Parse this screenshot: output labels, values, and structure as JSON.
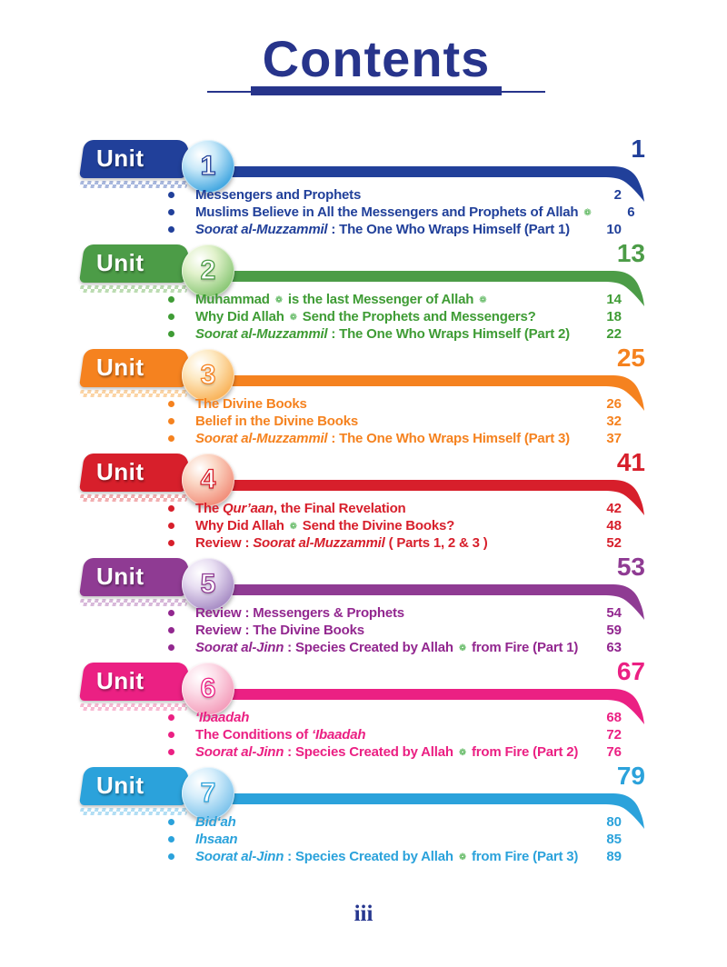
{
  "meta": {
    "honorific_display": "❁",
    "honorific_color": "#3DA93F",
    "title_color": "#27348B"
  },
  "title": "Contents",
  "footer_page": "iii",
  "labels": {
    "unit": "Unit"
  },
  "units": [
    {
      "number": "1",
      "page": "1",
      "colors": {
        "main": "#21409A",
        "text": "#21409A",
        "pale": "#A9B8DE",
        "circle": "#45A8E1",
        "circle-light": "#C9E9F9",
        "circle-dark": "#2380BD"
      },
      "items": [
        {
          "page": "2",
          "segments": [
            {
              "t": "Messengers and Prophets"
            }
          ]
        },
        {
          "page": "6",
          "segments": [
            {
              "t": "Muslims Believe in All the Messengers and Prophets of Allah "
            },
            {
              "t": "ﷻ",
              "h": true
            }
          ]
        },
        {
          "page": "10",
          "segments": [
            {
              "t": "Soorat al-Muzzammil",
              "i": true
            },
            {
              "t": " : The One Who Wraps Himself (Part 1)"
            }
          ]
        }
      ]
    },
    {
      "number": "2",
      "page": "13",
      "colors": {
        "main": "#4C9C47",
        "text": "#3F9C35",
        "pale": "#BCDCB2",
        "circle": "#8CC878",
        "circle-light": "#E2F2CC",
        "circle-dark": "#5BA748"
      },
      "items": [
        {
          "page": "14",
          "segments": [
            {
              "t": "Muhammad "
            },
            {
              "t": "ﷺ",
              "h": true
            },
            {
              "t": " is the last Messenger of Allah "
            },
            {
              "t": "ﷻ",
              "h": true
            }
          ]
        },
        {
          "page": "18",
          "segments": [
            {
              "t": "Why Did Allah "
            },
            {
              "t": "ﷻ",
              "h": true
            },
            {
              "t": " Send the Prophets and Messengers?"
            }
          ]
        },
        {
          "page": "22",
          "segments": [
            {
              "t": "Soorat al-Muzzammil",
              "i": true
            },
            {
              "t": " : The One Who Wraps Himself (Part 2)"
            }
          ]
        }
      ]
    },
    {
      "number": "3",
      "page": "25",
      "colors": {
        "main": "#F5821F",
        "text": "#F5821F",
        "pale": "#FBD4A5",
        "circle": "#F9B45C",
        "circle-light": "#FDEAC4",
        "circle-dark": "#F59B31"
      },
      "items": [
        {
          "page": "26",
          "segments": [
            {
              "t": "The Divine Books"
            }
          ]
        },
        {
          "page": "32",
          "segments": [
            {
              "t": "Belief in the Divine Books"
            }
          ]
        },
        {
          "page": "37",
          "segments": [
            {
              "t": "Soorat al-Muzzammil",
              "i": true
            },
            {
              "t": " : The One Who Wraps Himself (Part 3)"
            }
          ]
        }
      ]
    },
    {
      "number": "4",
      "page": "41",
      "colors": {
        "main": "#D71F2B",
        "text": "#D71F2B",
        "pale": "#F2AEB0",
        "circle": "#F2907C",
        "circle-light": "#FBD8C6",
        "circle-dark": "#E86A55"
      },
      "items": [
        {
          "page": "42",
          "segments": [
            {
              "t": "The "
            },
            {
              "t": "Qur’aan",
              "i": true
            },
            {
              "t": ", the Final Revelation"
            }
          ]
        },
        {
          "page": "48",
          "segments": [
            {
              "t": "Why Did Allah "
            },
            {
              "t": "ﷻ",
              "h": true
            },
            {
              "t": " Send the Divine Books?"
            }
          ]
        },
        {
          "page": "52",
          "segments": [
            {
              "t": "Review : "
            },
            {
              "t": "Soorat al-Muzzammil",
              "i": true
            },
            {
              "t": " ( Parts 1, 2 & 3 )"
            }
          ]
        }
      ]
    },
    {
      "number": "5",
      "page": "53",
      "colors": {
        "main": "#8F3B93",
        "text": "#92278F",
        "pale": "#D8B8DA",
        "circle": "#A98FC6",
        "circle-light": "#E8DEF2",
        "circle-dark": "#8C6BB0"
      },
      "items": [
        {
          "page": "54",
          "segments": [
            {
              "t": "Review : Messengers & Prophets"
            }
          ]
        },
        {
          "page": "59",
          "segments": [
            {
              "t": "Review : The Divine Books"
            }
          ]
        },
        {
          "page": "63",
          "segments": [
            {
              "t": "Soorat al-Jinn",
              "i": true
            },
            {
              "t": " : Species Created by Allah "
            },
            {
              "t": "ﷻ",
              "h": true
            },
            {
              "t": " from Fire (Part 1)"
            }
          ]
        }
      ]
    },
    {
      "number": "6",
      "page": "67",
      "colors": {
        "main": "#EB2083",
        "text": "#EB2083",
        "pale": "#F8B9D3",
        "circle": "#F49FBC",
        "circle-light": "#FCDEE9",
        "circle-dark": "#EF7BA4"
      },
      "items": [
        {
          "page": "68",
          "segments": [
            {
              "t": "‘Ibaadah",
              "i": true
            }
          ]
        },
        {
          "page": "72",
          "segments": [
            {
              "t": "The Conditions of "
            },
            {
              "t": "‘Ibaadah",
              "i": true
            }
          ]
        },
        {
          "page": "76",
          "segments": [
            {
              "t": "Soorat al-Jinn",
              "i": true
            },
            {
              "t": " : Species Created by Allah "
            },
            {
              "t": "ﷻ",
              "h": true
            },
            {
              "t": " from Fire (Part 2)"
            }
          ]
        }
      ]
    },
    {
      "number": "7",
      "page": "79",
      "colors": {
        "main": "#2BA2DB",
        "text": "#2BA2DB",
        "pale": "#B2DEF4",
        "circle": "#7FC4EC",
        "circle-light": "#D6EEFB",
        "circle-dark": "#4FA8DE"
      },
      "items": [
        {
          "page": "80",
          "segments": [
            {
              "t": "Bid‘ah",
              "i": true
            }
          ]
        },
        {
          "page": "85",
          "segments": [
            {
              "t": "Ihsaan",
              "i": true
            }
          ]
        },
        {
          "page": "89",
          "segments": [
            {
              "t": "Soorat al-Jinn",
              "i": true
            },
            {
              "t": " : Species Created by Allah "
            },
            {
              "t": "ﷻ",
              "h": true
            },
            {
              "t": " from Fire (Part 3)"
            }
          ]
        }
      ]
    }
  ]
}
